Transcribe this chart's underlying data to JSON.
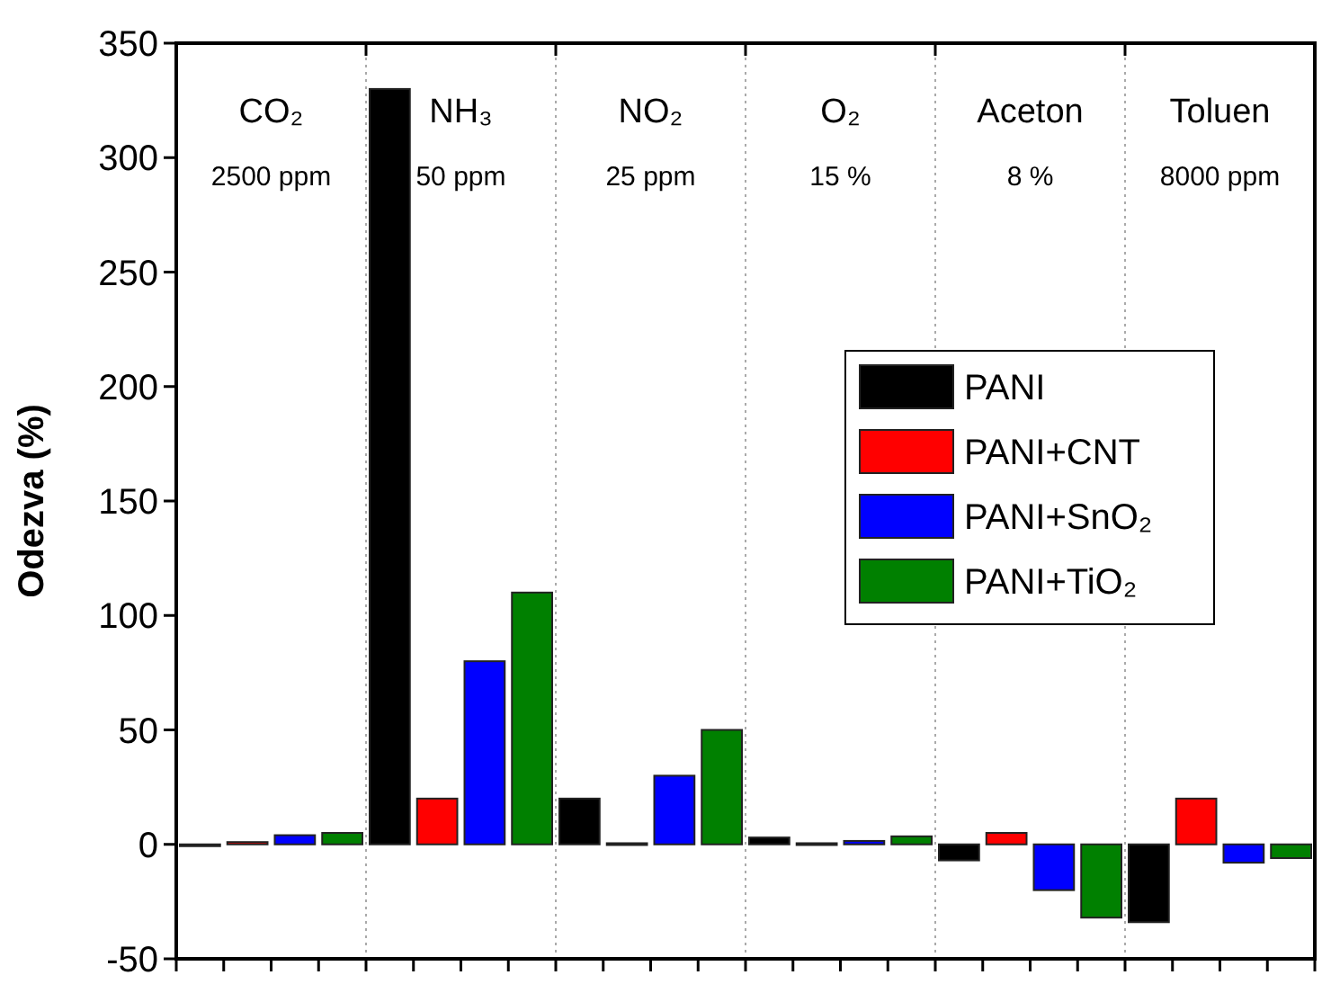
{
  "chart_data": {
    "type": "bar",
    "ylabel": "Odezva (%)",
    "categories": [
      "CO₂",
      "NH₃",
      "NO₂",
      "O₂",
      "Aceton",
      "Toluen"
    ],
    "annotations": [
      "2500 ppm",
      "50 ppm",
      "25 ppm",
      "15 %",
      "8 %",
      "8000 ppm"
    ],
    "series": [
      {
        "name": "PANI",
        "color": "#000000",
        "values": [
          -0.5,
          330,
          20,
          3,
          -7,
          -34
        ]
      },
      {
        "name": "PANI+CNT",
        "color": "#ff0000",
        "values": [
          1,
          20,
          0.5,
          0.5,
          5,
          20
        ]
      },
      {
        "name": "PANI+SnO₂",
        "color": "#0000ff",
        "values": [
          4,
          80,
          30,
          1.5,
          -20,
          -8
        ]
      },
      {
        "name": "PANI+TiO₂",
        "color": "#008000",
        "values": [
          5,
          110,
          50,
          3.5,
          -32,
          -6
        ]
      }
    ],
    "ylim": [
      -50,
      350
    ],
    "yticks": [
      -50,
      0,
      50,
      100,
      150,
      200,
      250,
      300,
      350
    ],
    "grid": false,
    "legend": "right"
  }
}
